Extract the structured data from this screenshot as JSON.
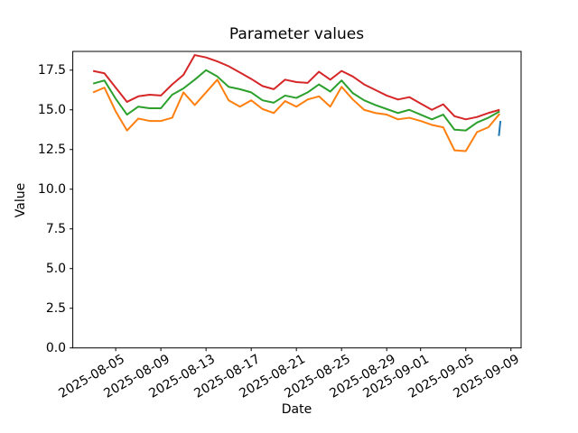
{
  "chart_data": {
    "type": "line",
    "title": "Parameter values",
    "xlabel": "Date",
    "ylabel": "Value",
    "grid": false,
    "legend": "none",
    "background_color": "#ffffff",
    "axes_color": "#000000",
    "ylim": [
      0,
      18.68
    ],
    "xlim": [
      "2025-08-01T04:48",
      "2025-09-09T21:36"
    ],
    "yticks": {
      "values": [
        0.0,
        2.5,
        5.0,
        7.5,
        10.0,
        12.5,
        15.0,
        17.5
      ],
      "labels": [
        "0.0",
        "2.5",
        "5.0",
        "7.5",
        "10.0",
        "12.5",
        "15.0",
        "17.5"
      ]
    },
    "xticks": {
      "dates": [
        "2025-08-05",
        "2025-08-09",
        "2025-08-13",
        "2025-08-17",
        "2025-08-21",
        "2025-08-25",
        "2025-08-29",
        "2025-09-01",
        "2025-09-05",
        "2025-09-09"
      ],
      "labels": [
        "2025-08-05",
        "2025-08-09",
        "2025-08-13",
        "2025-08-17",
        "2025-08-21",
        "2025-08-25",
        "2025-08-29",
        "2025-09-01",
        "2025-09-05",
        "2025-09-09"
      ]
    },
    "x": [
      "2025-08-03",
      "2025-08-04",
      "2025-08-05",
      "2025-08-06",
      "2025-08-07",
      "2025-08-08",
      "2025-08-09",
      "2025-08-10",
      "2025-08-11",
      "2025-08-12",
      "2025-08-13",
      "2025-08-14",
      "2025-08-15",
      "2025-08-16",
      "2025-08-17",
      "2025-08-18",
      "2025-08-19",
      "2025-08-20",
      "2025-08-21",
      "2025-08-22",
      "2025-08-23",
      "2025-08-24",
      "2025-08-25",
      "2025-08-26",
      "2025-08-27",
      "2025-08-28",
      "2025-08-29",
      "2025-08-30",
      "2025-08-31",
      "2025-09-01",
      "2025-09-02",
      "2025-09-03",
      "2025-09-04",
      "2025-09-05",
      "2025-09-06",
      "2025-09-07",
      "2025-09-08"
    ],
    "series": [
      {
        "name": "orange",
        "color": "#ff7f0e",
        "values": [
          16.1,
          16.4,
          14.9,
          13.7,
          14.45,
          14.3,
          14.3,
          14.5,
          16.1,
          15.3,
          16.1,
          16.9,
          15.6,
          15.2,
          15.6,
          15.05,
          14.8,
          15.55,
          15.2,
          15.65,
          15.85,
          15.2,
          16.45,
          15.65,
          15.0,
          14.8,
          14.7,
          14.4,
          14.5,
          14.3,
          14.05,
          13.9,
          12.45,
          12.4,
          13.6,
          13.9,
          14.75
        ]
      },
      {
        "name": "green",
        "color": "#2ca02c",
        "values": [
          16.65,
          16.85,
          15.7,
          14.7,
          15.2,
          15.1,
          15.1,
          15.95,
          16.35,
          16.9,
          17.5,
          17.1,
          16.45,
          16.3,
          16.1,
          15.6,
          15.45,
          15.9,
          15.75,
          16.1,
          16.6,
          16.15,
          16.85,
          16.05,
          15.6,
          15.3,
          15.05,
          14.8,
          15.0,
          14.7,
          14.4,
          14.7,
          13.75,
          13.7,
          14.2,
          14.5,
          14.9
        ]
      },
      {
        "name": "red",
        "color": "#d62728",
        "values": [
          17.45,
          17.3,
          16.4,
          15.5,
          15.85,
          15.95,
          15.9,
          16.6,
          17.2,
          18.45,
          18.3,
          18.05,
          17.75,
          17.35,
          16.95,
          16.5,
          16.3,
          16.9,
          16.75,
          16.7,
          17.4,
          16.9,
          17.45,
          17.1,
          16.6,
          16.25,
          15.9,
          15.65,
          15.8,
          15.4,
          15.0,
          15.35,
          14.6,
          14.4,
          14.55,
          14.8,
          15.0
        ]
      },
      {
        "name": "blue",
        "color": "#1f77b4",
        "points": [
          {
            "t": "2025-09-07T22:20",
            "value": 13.35
          },
          {
            "t": "2025-09-08T01:40",
            "value": 14.3
          }
        ]
      }
    ]
  }
}
